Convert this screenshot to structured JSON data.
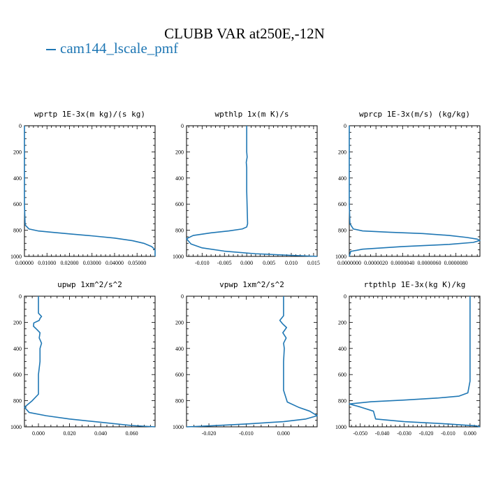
{
  "page": {
    "title": "CLUBB VAR at250E,-12N",
    "legend_label": "cam144_lscale_pmf",
    "line_color": "#1f77b4"
  },
  "chart_data": [
    {
      "type": "line",
      "title": "wprtp  1E-3x(m kg)/(s kg)",
      "xlim": [
        0,
        0.058
      ],
      "ylim": [
        1000,
        0
      ],
      "xticks": [
        0.0,
        0.01,
        0.02,
        0.03,
        0.04,
        0.05
      ],
      "xtick_labels": [
        "0.00000",
        "0.01000",
        "0.02000",
        "0.03000",
        "0.04000",
        "0.05000"
      ],
      "yticks": [
        0,
        200,
        400,
        600,
        800,
        1000
      ],
      "series": [
        {
          "x": [
            0,
            0,
            0,
            0.0003,
            0.002,
            0.006,
            0.012,
            0.02,
            0.03,
            0.04,
            0.048,
            0.053,
            0.0565,
            0.058,
            0.058
          ],
          "y": [
            0,
            200,
            600,
            760,
            790,
            805,
            815,
            828,
            843,
            860,
            880,
            900,
            925,
            950,
            1000
          ]
        }
      ]
    },
    {
      "type": "line",
      "title": "wpthlp  1x(m K)/s",
      "xlim": [
        -0.0135,
        0.0158
      ],
      "ylim": [
        1000,
        0
      ],
      "xticks": [
        -0.01,
        -0.005,
        0.0,
        0.005,
        0.01,
        0.015
      ],
      "xtick_labels": [
        "-0.010",
        "-0.005",
        "0.000",
        "0.005",
        "0.010",
        "0.015"
      ],
      "yticks": [
        0,
        200,
        400,
        600,
        800,
        1000
      ],
      "series": [
        {
          "x": [
            0,
            0,
            0.0001,
            -0.0001,
            0,
            0,
            0.0002,
            0,
            -0.001,
            -0.004,
            -0.008,
            -0.012,
            -0.0135,
            -0.0125,
            -0.01,
            -0.005,
            0.002,
            0.01,
            0.0158
          ],
          "y": [
            0,
            200,
            240,
            280,
            320,
            500,
            750,
            775,
            790,
            805,
            820,
            840,
            865,
            905,
            935,
            960,
            980,
            992,
            1000
          ]
        }
      ]
    },
    {
      "type": "line",
      "title": "wprcp  1E-3x(m/s) (kg/kg)",
      "xlim": [
        0,
        9.8e-06
      ],
      "ylim": [
        1000,
        0
      ],
      "xticks": [
        0.0,
        2e-06,
        4e-06,
        6e-06,
        8e-06
      ],
      "xtick_labels": [
        "0.0000000",
        "0.0000020",
        "0.0000040",
        "0.0000060",
        "0.0000080"
      ],
      "yticks": [
        0,
        200,
        400,
        600,
        800,
        1000
      ],
      "series": [
        {
          "x": [
            0,
            0,
            5e-08,
            3e-07,
            1e-06,
            3e-06,
            5.5e-06,
            7.5e-06,
            8.8e-06,
            9.6e-06,
            9.8e-06,
            9.3e-06,
            7.5e-06,
            4e-06,
            1e-06,
            1e-07,
            0
          ],
          "y": [
            0,
            600,
            750,
            790,
            805,
            815,
            825,
            840,
            855,
            868,
            878,
            893,
            908,
            925,
            945,
            962,
            1000
          ]
        }
      ]
    },
    {
      "type": "line",
      "title": "upwp  1xm^2/s^2",
      "xlim": [
        -0.009,
        0.075
      ],
      "ylim": [
        1000,
        0
      ],
      "xticks": [
        0.0,
        0.02,
        0.04,
        0.06
      ],
      "xtick_labels": [
        "0.000",
        "0.020",
        "0.040",
        "0.060"
      ],
      "yticks": [
        0,
        200,
        400,
        600,
        800,
        1000
      ],
      "series": [
        {
          "x": [
            0,
            0,
            0.002,
            0.001,
            0.0005,
            -0.003,
            -0.0032,
            -0.001,
            0.001,
            0.0005,
            0.002,
            0.001,
            0.001,
            0,
            0,
            -0.004,
            -0.009,
            -0.006,
            0.005,
            0.02,
            0.04,
            0.06,
            0.075
          ],
          "y": [
            0,
            130,
            155,
            170,
            185,
            205,
            230,
            255,
            280,
            320,
            360,
            400,
            500,
            600,
            750,
            800,
            850,
            890,
            915,
            940,
            965,
            990,
            1000
          ]
        }
      ]
    },
    {
      "type": "line",
      "title": "vpwp  1xm^2/s^2",
      "xlim": [
        -0.026,
        0.009
      ],
      "ylim": [
        1000,
        0
      ],
      "xticks": [
        -0.02,
        -0.01,
        0.0
      ],
      "xtick_labels": [
        "-0.020",
        "-0.010",
        "0.000"
      ],
      "yticks": [
        0,
        200,
        400,
        600,
        800,
        1000
      ],
      "series": [
        {
          "x": [
            0,
            0,
            -0.001,
            -0.0003,
            0.0008,
            -0.0002,
            0.0007,
            0,
            0.0002,
            0,
            0,
            0.001,
            0.004,
            0.007,
            0.009,
            0.006,
            0,
            -0.01,
            -0.02,
            -0.026
          ],
          "y": [
            0,
            150,
            185,
            210,
            240,
            280,
            320,
            360,
            400,
            500,
            720,
            810,
            850,
            880,
            915,
            940,
            960,
            978,
            993,
            1000
          ]
        }
      ]
    },
    {
      "type": "line",
      "title": "rtpthlp  1E-3x(kg K)/kg",
      "xlim": [
        -0.055,
        0.0045
      ],
      "ylim": [
        1000,
        0
      ],
      "xticks": [
        -0.05,
        -0.04,
        -0.03,
        -0.02,
        -0.01,
        0.0
      ],
      "xtick_labels": [
        "-0.050",
        "-0.040",
        "-0.030",
        "-0.020",
        "-0.010",
        "0.000"
      ],
      "yticks": [
        0,
        200,
        400,
        600,
        800,
        1000
      ],
      "series": [
        {
          "x": [
            0,
            0,
            -0.001,
            -0.005,
            -0.015,
            -0.03,
            -0.045,
            -0.055,
            -0.05,
            -0.044,
            -0.043,
            -0.03,
            -0.01,
            0.003,
            0.0045
          ],
          "y": [
            0,
            650,
            740,
            765,
            780,
            795,
            808,
            825,
            848,
            880,
            940,
            960,
            978,
            993,
            1000
          ]
        }
      ]
    }
  ]
}
